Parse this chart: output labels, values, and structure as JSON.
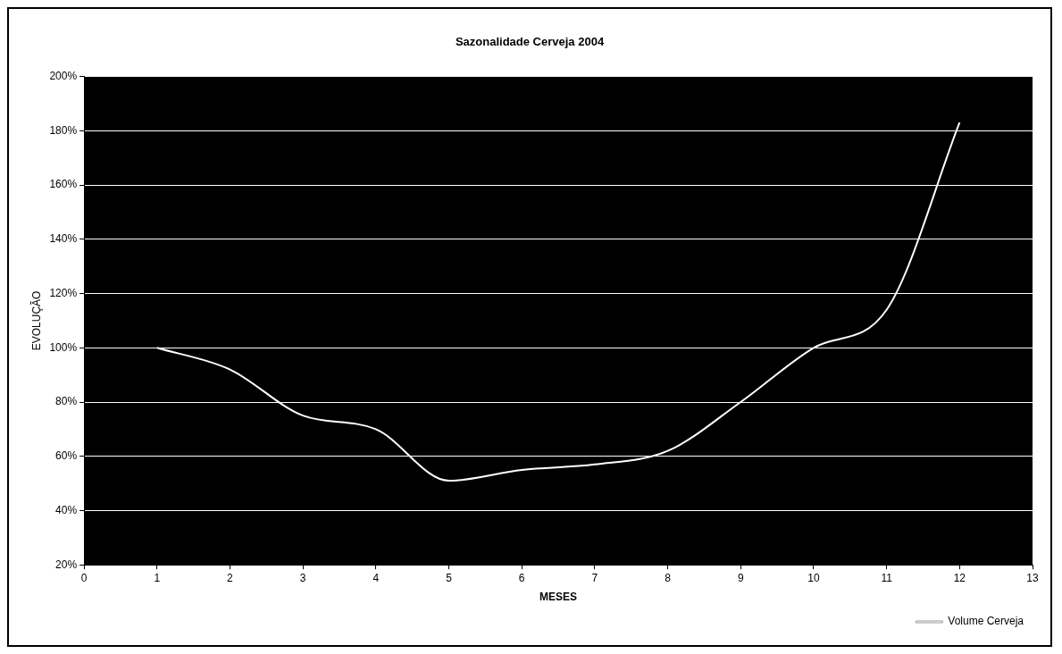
{
  "chart_data": {
    "type": "line",
    "title": "Sazonalidade Cerveja 2004",
    "xlabel": "MESES",
    "ylabel": "EVOLUÇÃO",
    "x": [
      1,
      2,
      3,
      4,
      5,
      6,
      7,
      8,
      9,
      10,
      11,
      12
    ],
    "series": [
      {
        "name": "Volume Cerveja",
        "color": "#ffffff",
        "values": [
          100,
          92,
          75,
          70,
          51,
          55,
          57,
          62,
          80,
          100,
          114,
          183
        ]
      }
    ],
    "xlim": [
      0,
      13
    ],
    "xticks": [
      0,
      1,
      2,
      3,
      4,
      5,
      6,
      7,
      8,
      9,
      10,
      11,
      12,
      13
    ],
    "ylim": [
      20,
      200
    ],
    "yticks": [
      {
        "value": 20,
        "label": "20%"
      },
      {
        "value": 40,
        "label": "40%"
      },
      {
        "value": 60,
        "label": "60%"
      },
      {
        "value": 80,
        "label": "80%"
      },
      {
        "value": 100,
        "label": "100%"
      },
      {
        "value": 120,
        "label": "120%"
      },
      {
        "value": 140,
        "label": "140%"
      },
      {
        "value": 160,
        "label": "160%"
      },
      {
        "value": 180,
        "label": "180%"
      },
      {
        "value": 200,
        "label": "200%"
      }
    ],
    "grid": "y",
    "legend": "bottom right",
    "marker": "none",
    "line_style": "solid"
  }
}
